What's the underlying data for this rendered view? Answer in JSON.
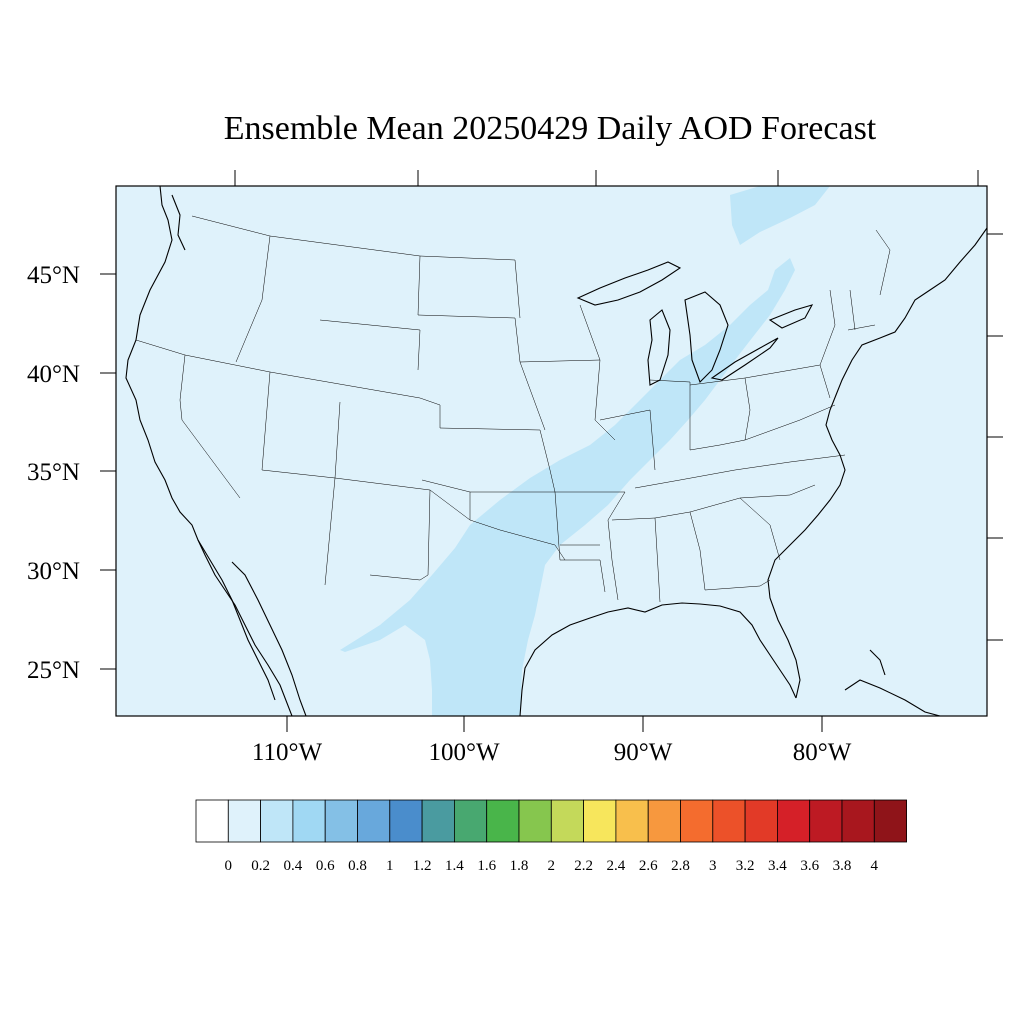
{
  "title": "Ensemble Mean 20250429 Daily AOD Forecast",
  "map": {
    "background_color": "#dff2fb",
    "plume_color": "#bfe6f8",
    "latitude_labels": [
      "45°N",
      "40°N",
      "35°N",
      "30°N",
      "25°N"
    ],
    "longitude_labels": [
      "110°W",
      "100°W",
      "90°W",
      "80°W"
    ]
  },
  "colorbar": {
    "colors": [
      "#ffffff",
      "#dff2fb",
      "#bfe6f8",
      "#a0d8f3",
      "#84c0e6",
      "#68a8dc",
      "#4a8dcc",
      "#4a9ba0",
      "#48a870",
      "#49b54a",
      "#86c64e",
      "#c4d95a",
      "#f7e65c",
      "#f8bf4c",
      "#f7983e",
      "#f46c2e",
      "#ec5129",
      "#e23a27",
      "#d52028",
      "#bd1a23",
      "#a8171e",
      "#8f1419"
    ],
    "labels": [
      "0",
      "0.2",
      "0.4",
      "0.6",
      "0.8",
      "1",
      "1.2",
      "1.4",
      "1.6",
      "1.8",
      "2",
      "2.2",
      "2.4",
      "2.6",
      "2.8",
      "3",
      "3.2",
      "3.4",
      "3.6",
      "3.8",
      "4"
    ]
  }
}
